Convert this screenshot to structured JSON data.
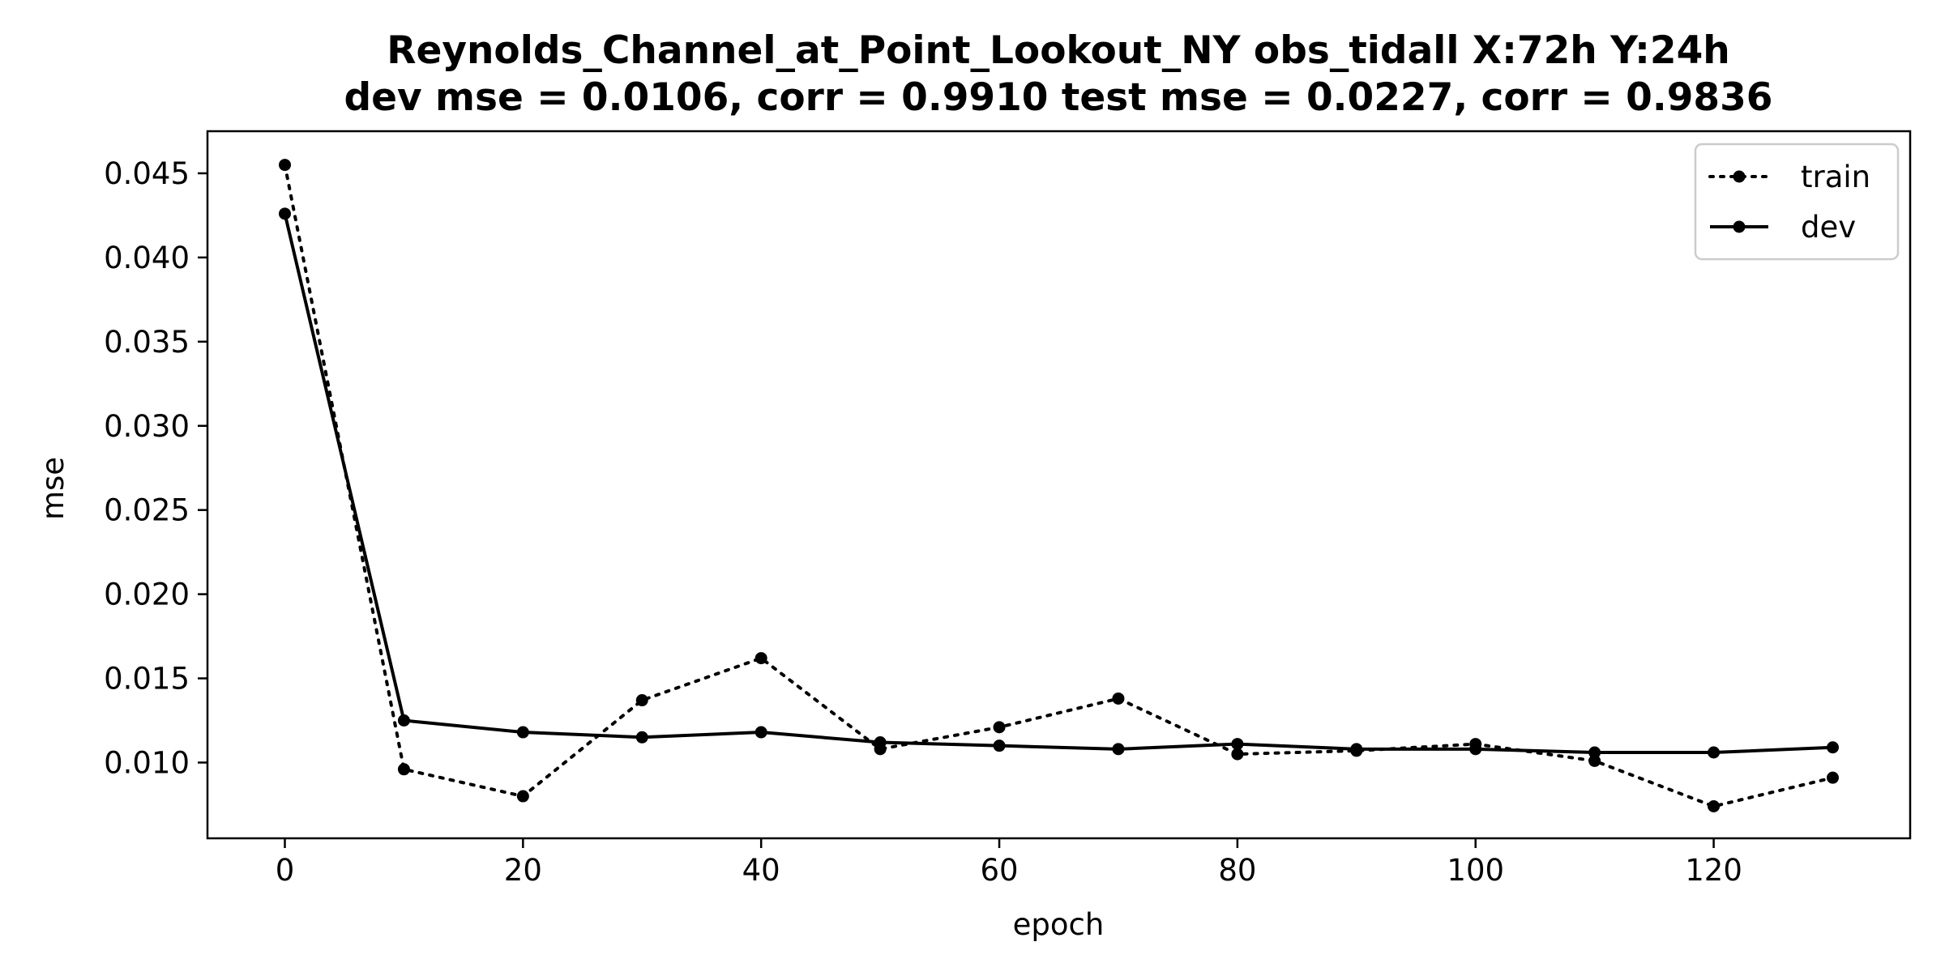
{
  "chart_data": {
    "type": "line",
    "title": "Reynolds_Channel_at_Point_Lookout_NY   obs_tidall   X:72h   Y:24h",
    "subtitle": "dev mse = 0.0106, corr = 0.9910   test mse = 0.0227, corr = 0.9836",
    "xlabel": "epoch",
    "ylabel": "mse",
    "xlim": [
      -6.5,
      136.5
    ],
    "ylim": [
      0.0055,
      0.0475
    ],
    "xticks": [
      0,
      20,
      40,
      60,
      80,
      100,
      120
    ],
    "xtick_labels": [
      "0",
      "20",
      "40",
      "60",
      "80",
      "100",
      "120"
    ],
    "yticks": [
      0.01,
      0.015,
      0.02,
      0.025,
      0.03,
      0.035,
      0.04,
      0.045
    ],
    "ytick_labels": [
      "0.010",
      "0.015",
      "0.020",
      "0.025",
      "0.030",
      "0.035",
      "0.040",
      "0.045"
    ],
    "grid": false,
    "legend_position": "top-right",
    "x": [
      0,
      10,
      20,
      30,
      40,
      50,
      60,
      70,
      80,
      90,
      100,
      110,
      120,
      130
    ],
    "series": [
      {
        "name": "train",
        "style": "dotted",
        "color": "#000000",
        "values": [
          0.0455,
          0.0096,
          0.008,
          0.0137,
          0.0162,
          0.0108,
          0.0121,
          0.0138,
          0.0105,
          0.0107,
          0.0111,
          0.0101,
          0.0074,
          0.0091
        ]
      },
      {
        "name": "dev",
        "style": "solid",
        "color": "#000000",
        "values": [
          0.0426,
          0.0125,
          0.0118,
          0.0115,
          0.0118,
          0.0112,
          0.011,
          0.0108,
          0.0111,
          0.0108,
          0.0108,
          0.0106,
          0.0106,
          0.0109
        ]
      }
    ]
  }
}
